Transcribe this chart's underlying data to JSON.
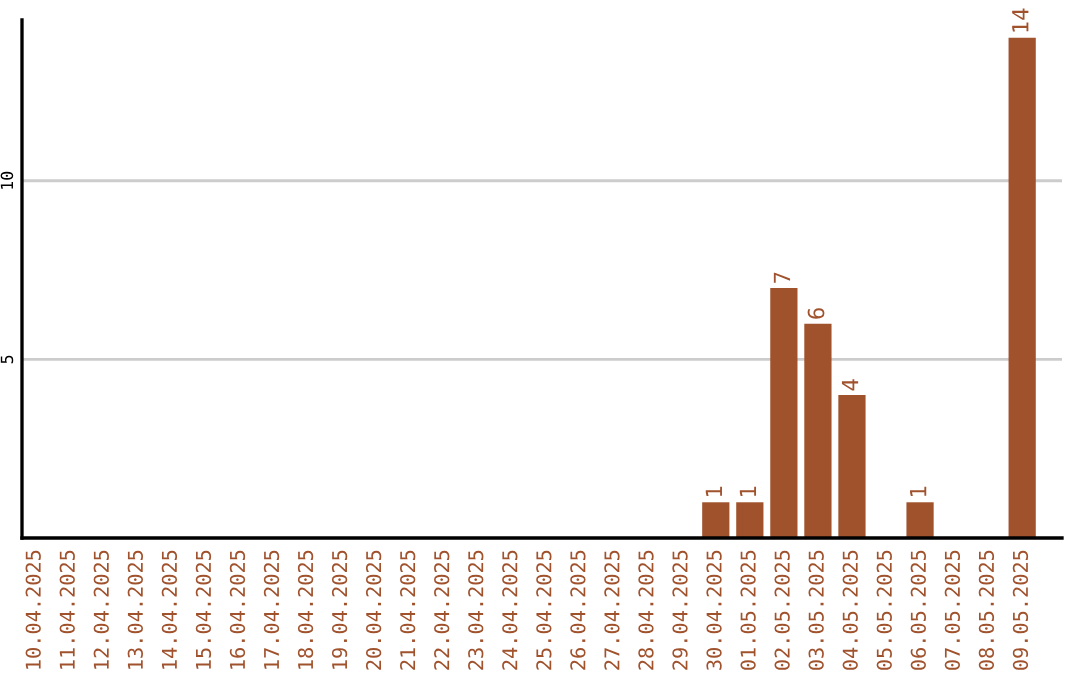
{
  "chart_data": {
    "type": "bar",
    "categories": [
      "10.04.2025",
      "11.04.2025",
      "12.04.2025",
      "13.04.2025",
      "14.04.2025",
      "15.04.2025",
      "16.04.2025",
      "17.04.2025",
      "18.04.2025",
      "19.04.2025",
      "20.04.2025",
      "21.04.2025",
      "22.04.2025",
      "23.04.2025",
      "24.04.2025",
      "25.04.2025",
      "26.04.2025",
      "27.04.2025",
      "28.04.2025",
      "29.04.2025",
      "30.04.2025",
      "01.05.2025",
      "02.05.2025",
      "03.05.2025",
      "04.05.2025",
      "05.05.2025",
      "06.05.2025",
      "07.05.2025",
      "08.05.2025",
      "09.05.2025"
    ],
    "values": [
      0,
      0,
      0,
      0,
      0,
      0,
      0,
      0,
      0,
      0,
      0,
      0,
      0,
      0,
      0,
      0,
      0,
      0,
      0,
      0,
      1,
      1,
      7,
      6,
      4,
      0,
      1,
      0,
      0,
      14
    ],
    "value_labels": [
      null,
      null,
      null,
      null,
      null,
      null,
      null,
      null,
      null,
      null,
      null,
      null,
      null,
      null,
      null,
      null,
      null,
      null,
      null,
      null,
      "1",
      "1",
      "7",
      "6",
      "4",
      null,
      "1",
      null,
      null,
      "14"
    ],
    "color": "#a0522d",
    "ylim": [
      0,
      14.5
    ],
    "yticks": [
      5,
      10
    ],
    "grid": "y"
  }
}
